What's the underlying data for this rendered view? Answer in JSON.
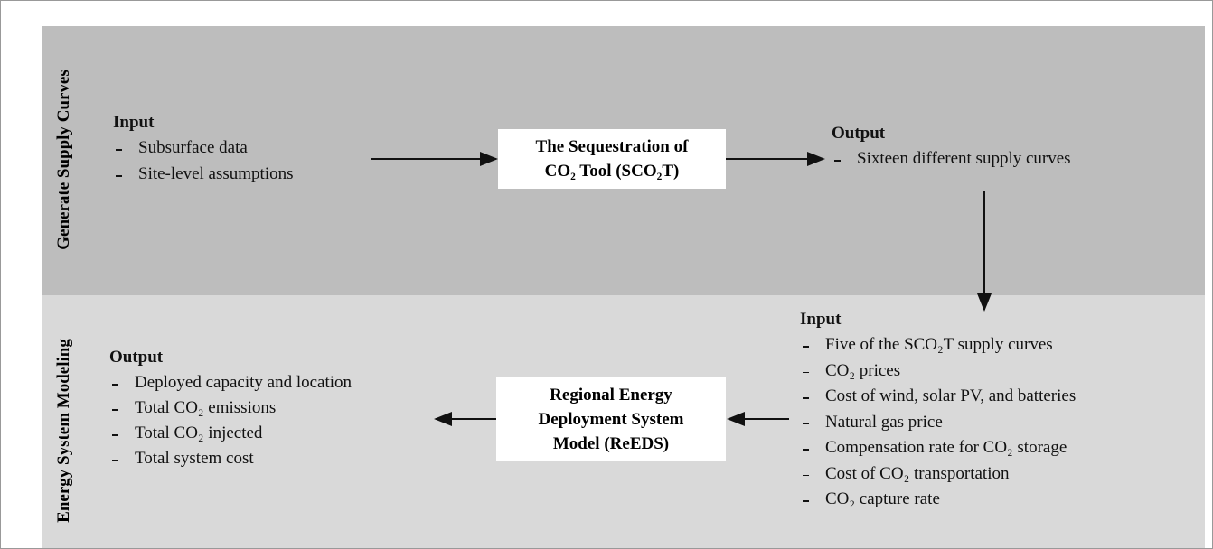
{
  "sections": [
    {
      "label": "Generate Supply Curves",
      "input": {
        "heading": "Input",
        "items": [
          "Subsurface data",
          "Site-level assumptions"
        ]
      },
      "tool": [
        "The Sequestration of",
        "CO₂ Tool (SCO₂T)"
      ],
      "output": {
        "heading": "Output",
        "items": [
          "Sixteen different supply curves"
        ]
      }
    },
    {
      "label": "Energy System Modeling",
      "input": {
        "heading": "Input",
        "items": [
          "Five of the SCO₂T supply curves",
          "CO₂ prices",
          "Cost of wind, solar PV, and batteries",
          "Natural gas price",
          "Compensation rate for CO₂ storage",
          "Cost of CO₂ transportation",
          "CO₂ capture rate"
        ]
      },
      "tool": [
        "Regional Energy",
        "Deployment System",
        "Model (ReEDS)"
      ],
      "output": {
        "heading": "Output",
        "items": [
          "Deployed capacity and location",
          "Total CO₂ emissions",
          "Total CO₂ injected",
          "Total system cost"
        ]
      }
    }
  ]
}
